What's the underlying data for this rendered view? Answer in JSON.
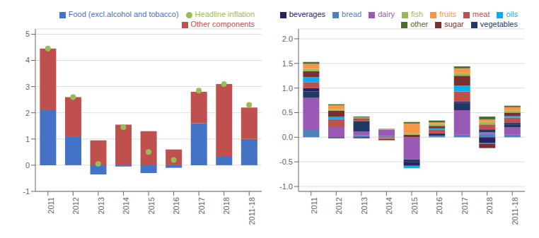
{
  "chart_data": [
    {
      "type": "bar",
      "stacked": true,
      "grid": true,
      "legend": "upper right",
      "categories": [
        "2011",
        "2012",
        "2013",
        "2014",
        "2015",
        "2016",
        "2017",
        "2018",
        "2011-18"
      ],
      "series": [
        {
          "name": "Food (excl.alcohol and tobacco)",
          "type": "bar",
          "color": "#4472C4",
          "values": [
            2.1,
            1.1,
            -0.35,
            -0.05,
            -0.3,
            -0.1,
            1.6,
            0.35,
            1.0
          ]
        },
        {
          "name": "Other components",
          "type": "bar",
          "color": "#C0504D",
          "values": [
            2.35,
            1.5,
            0.95,
            1.55,
            1.3,
            0.6,
            1.2,
            2.75,
            1.2
          ]
        },
        {
          "name": "Headline inflation",
          "type": "scatter",
          "marker": "circle",
          "color": "#9BBB59",
          "values": [
            4.45,
            2.6,
            0.05,
            1.45,
            0.5,
            0.2,
            2.85,
            3.1,
            2.3
          ]
        }
      ],
      "ylim": [
        -1,
        5.2
      ],
      "yticks": [
        -1,
        0,
        1,
        2,
        3,
        4,
        5
      ]
    },
    {
      "type": "bar",
      "stacked": true,
      "grid": true,
      "legend": "upper right",
      "categories": [
        "2011",
        "2012",
        "2013",
        "2014",
        "2015",
        "2016",
        "2017",
        "2018",
        "2011-18"
      ],
      "series": [
        {
          "name": "bread",
          "color": "#4F81BD",
          "values": [
            0.15,
            0.0,
            0.04,
            0.03,
            0.0,
            0.03,
            0.05,
            0.07,
            0.05
          ]
        },
        {
          "name": "dairy",
          "color": "#9B59B6",
          "values": [
            0.65,
            0.22,
            0.08,
            0.12,
            -0.45,
            0.0,
            0.5,
            0.03,
            0.15
          ]
        },
        {
          "name": "vegetables",
          "color": "#1F3864",
          "values": [
            0.13,
            -0.02,
            0.2,
            0.0,
            -0.05,
            0.05,
            0.15,
            0.06,
            0.07
          ]
        },
        {
          "name": "beverages",
          "color": "#2D2060",
          "values": [
            0.07,
            0.0,
            -0.02,
            0.0,
            -0.08,
            0.0,
            0.03,
            -0.12,
            0.03
          ]
        },
        {
          "name": "meat",
          "color": "#C0504D",
          "values": [
            0.12,
            0.15,
            0.04,
            -0.02,
            0.0,
            0.07,
            0.2,
            0.1,
            0.1
          ]
        },
        {
          "name": "oils",
          "color": "#00B0F0",
          "values": [
            0.1,
            0.05,
            0.0,
            -0.01,
            -0.05,
            0.03,
            0.12,
            -0.01,
            0.03
          ]
        },
        {
          "name": "sugar",
          "color": "#7B3030",
          "values": [
            0.12,
            0.12,
            0.02,
            -0.03,
            0.05,
            0.05,
            0.2,
            -0.09,
            0.07
          ]
        },
        {
          "name": "fish",
          "color": "#9BBB59",
          "values": [
            0.05,
            0.03,
            0.02,
            0.01,
            0.03,
            0.04,
            0.05,
            0.05,
            0.04
          ]
        },
        {
          "name": "fruits",
          "color": "#F79646",
          "values": [
            0.1,
            0.08,
            0.0,
            -0.01,
            0.2,
            0.03,
            0.1,
            0.05,
            0.07
          ]
        },
        {
          "name": "other",
          "color": "#4E6B2E",
          "values": [
            0.04,
            0.02,
            0.02,
            0.01,
            0.03,
            0.04,
            0.04,
            0.06,
            0.03
          ]
        }
      ],
      "ylim": [
        -1.1,
        2.2
      ],
      "yticks": [
        {
          "value": -1.0,
          "label": "-1.0"
        },
        -0.5,
        {
          "value": 0.0,
          "label": "0.0"
        },
        0.5,
        {
          "value": 1.0,
          "label": "1.0"
        },
        1.5,
        {
          "value": 2.0,
          "label": "2.0"
        }
      ]
    }
  ]
}
